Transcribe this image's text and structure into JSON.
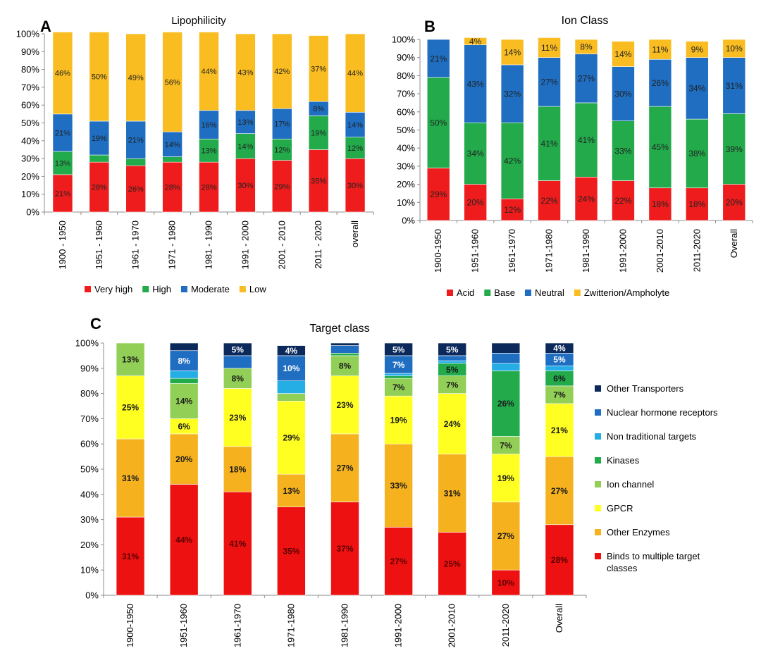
{
  "chart_data": [
    {
      "panel_label": "A",
      "type": "bar",
      "stacked": true,
      "title": "Lipophilicity",
      "categories": [
        "1900 - 1950",
        "1951 - 1960",
        "1961 - 1970",
        "1971 - 1980",
        "1981 - 1990",
        "1991 - 2000",
        "2001 - 2010",
        "2011 - 2020",
        "overall"
      ],
      "y_ticks": [
        "0%",
        "10%",
        "20%",
        "30%",
        "40%",
        "50%",
        "60%",
        "70%",
        "80%",
        "90%",
        "100%"
      ],
      "ylim": [
        0,
        100
      ],
      "legend_position": "bottom",
      "series": [
        {
          "name": "Very high",
          "color": "#ee1c1c",
          "values": [
            21,
            28,
            26,
            28,
            28,
            30,
            29,
            35,
            30
          ],
          "labels": [
            "21%",
            "28%",
            "26%",
            "28%",
            "28%",
            "30%",
            "29%",
            "35%",
            "30%"
          ]
        },
        {
          "name": "High",
          "color": "#22aa4b",
          "values": [
            13,
            4,
            4,
            3,
            13,
            14,
            12,
            19,
            12
          ],
          "labels": [
            "13%",
            "",
            "",
            "",
            "13%",
            "14%",
            "12%",
            "19%",
            "12%"
          ]
        },
        {
          "name": "Moderate",
          "color": "#1f6ec1",
          "values": [
            21,
            19,
            21,
            14,
            16,
            13,
            17,
            8,
            14
          ],
          "labels": [
            "21%",
            "19%",
            "21%",
            "14%",
            "16%",
            "13%",
            "17%",
            "8%",
            "14%"
          ]
        },
        {
          "name": "Low",
          "color": "#f9bd21",
          "values": [
            46,
            50,
            49,
            56,
            44,
            43,
            42,
            37,
            44
          ],
          "labels": [
            "46%",
            "50%",
            "49%",
            "56%",
            "44%",
            "43%",
            "42%",
            "37%",
            "44%"
          ]
        }
      ]
    },
    {
      "panel_label": "B",
      "type": "bar",
      "stacked": true,
      "title": "Ion Class",
      "categories": [
        "1900-1950",
        "1951-1960",
        "1961-1970",
        "1971-1980",
        "1981-1990",
        "1991-2000",
        "2001-2010",
        "2011-2020",
        "Overall"
      ],
      "y_ticks": [
        "0%",
        "10%",
        "20%",
        "30%",
        "40%",
        "50%",
        "60%",
        "70%",
        "80%",
        "90%",
        "100%"
      ],
      "ylim": [
        0,
        100
      ],
      "legend_position": "bottom",
      "series": [
        {
          "name": "Acid",
          "color": "#ee1c1c",
          "values": [
            29,
            20,
            12,
            22,
            24,
            22,
            18,
            18,
            20
          ],
          "labels": [
            "29%",
            "20%",
            "12%",
            "22%",
            "24%",
            "22%",
            "18%",
            "18%",
            "20%"
          ]
        },
        {
          "name": "Base",
          "color": "#22aa4b",
          "values": [
            50,
            34,
            42,
            41,
            41,
            33,
            45,
            38,
            39
          ],
          "labels": [
            "50%",
            "34%",
            "42%",
            "41%",
            "41%",
            "33%",
            "45%",
            "38%",
            "39%"
          ]
        },
        {
          "name": "Neutral",
          "color": "#1f6ec1",
          "values": [
            21,
            43,
            32,
            27,
            27,
            30,
            26,
            34,
            31
          ],
          "labels": [
            "21%",
            "43%",
            "32%",
            "27%",
            "27%",
            "30%",
            "26%",
            "34%",
            "31%"
          ]
        },
        {
          "name": "Zwitterion/Ampholyte",
          "color": "#f9bd21",
          "values": [
            0,
            4,
            14,
            11,
            8,
            14,
            11,
            9,
            10
          ],
          "labels": [
            "",
            "4%",
            "14%",
            "11%",
            "8%",
            "14%",
            "11%",
            "9%",
            "10%"
          ]
        }
      ]
    },
    {
      "panel_label": "C",
      "type": "bar",
      "stacked": true,
      "title": "Target class",
      "categories": [
        "1900-1950",
        "1951-1960",
        "1961-1970",
        "1971-1980",
        "1981-1990",
        "1991-2000",
        "2001-2010",
        "2011-2020",
        "Overall"
      ],
      "y_ticks": [
        "0%",
        "10%",
        "20%",
        "30%",
        "40%",
        "50%",
        "60%",
        "70%",
        "80%",
        "90%",
        "100%"
      ],
      "ylim": [
        0,
        100
      ],
      "legend_position": "right",
      "series": [
        {
          "name": "Binds to multiple target classes",
          "color": "#ee1111",
          "values": [
            31,
            44,
            41,
            35,
            37,
            27,
            25,
            10,
            28
          ],
          "labels": [
            "31%",
            "44%",
            "41%",
            "35%",
            "37%",
            "27%",
            "25%",
            "10%",
            "28%"
          ]
        },
        {
          "name": "Other Enzymes",
          "color": "#f5b21e",
          "values": [
            31,
            20,
            18,
            13,
            27,
            33,
            31,
            27,
            27
          ],
          "labels": [
            "31%",
            "20%",
            "18%",
            "13%",
            "27%",
            "33%",
            "31%",
            "27%",
            "27%"
          ]
        },
        {
          "name": "GPCR",
          "color": "#ffff22",
          "values": [
            25,
            6,
            23,
            29,
            23,
            19,
            24,
            19,
            21
          ],
          "labels": [
            "25%",
            "6%",
            "23%",
            "29%",
            "23%",
            "19%",
            "24%",
            "19%",
            "21%"
          ]
        },
        {
          "name": "Ion channel",
          "color": "#92cf56",
          "values": [
            13,
            14,
            8,
            3,
            8,
            7,
            7,
            7,
            7
          ],
          "labels": [
            "13%",
            "14%",
            "8%",
            "",
            "8%",
            "7%",
            "7%",
            "7%",
            "7%"
          ]
        },
        {
          "name": "Kinases",
          "color": "#22aa4b",
          "values": [
            0,
            2,
            0,
            0,
            1,
            1,
            5,
            26,
            6
          ],
          "labels": [
            "",
            "",
            "",
            "",
            "",
            "",
            "5%",
            "26%",
            "6%"
          ]
        },
        {
          "name": "Non traditional targets",
          "color": "#25aee6",
          "values": [
            0,
            3,
            0,
            5,
            0,
            1,
            1,
            3,
            2
          ],
          "labels": [
            "",
            "",
            "",
            "",
            "",
            "",
            "",
            "",
            ""
          ]
        },
        {
          "name": "Nuclear hormone receptors",
          "color": "#1f6ec1",
          "values": [
            0,
            8,
            5,
            10,
            3,
            7,
            2,
            4,
            5
          ],
          "labels": [
            "",
            "8%",
            "",
            "10%",
            "",
            "7%",
            "",
            "",
            "5%"
          ]
        },
        {
          "name": "Other Transporters",
          "color": "#0b2a5b",
          "values": [
            0,
            3,
            5,
            4,
            1,
            5,
            5,
            4,
            4
          ],
          "labels": [
            "",
            "",
            "5%",
            "4%",
            "",
            "5%",
            "5%",
            "",
            "4%"
          ]
        }
      ]
    }
  ]
}
